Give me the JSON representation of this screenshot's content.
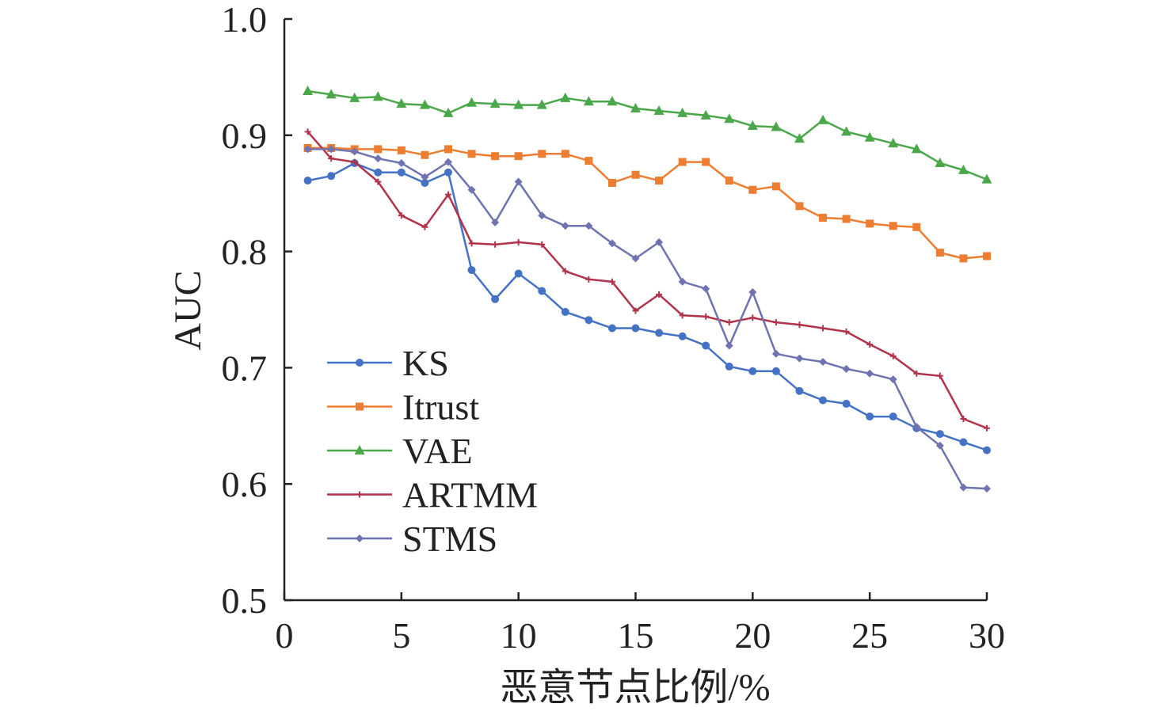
{
  "chart_data": {
    "type": "line",
    "title": "",
    "xlabel": "恶意节点比例/%",
    "ylabel": "AUC",
    "xlim": [
      0,
      30
    ],
    "ylim": [
      0.5,
      1.0
    ],
    "x_ticks": [
      0,
      5,
      10,
      15,
      20,
      25,
      30
    ],
    "y_ticks": [
      0.5,
      0.6,
      0.7,
      0.8,
      0.9,
      1.0
    ],
    "x_tick_labels": [
      "0",
      "5",
      "10",
      "15",
      "20",
      "25",
      "30"
    ],
    "y_tick_labels": [
      "0.5",
      "0.6",
      "0.7",
      "0.8",
      "0.9",
      "1.0"
    ],
    "grid": false,
    "legend_position": "bottom-left",
    "x": [
      1,
      2,
      3,
      4,
      5,
      6,
      7,
      8,
      9,
      10,
      11,
      12,
      13,
      14,
      15,
      16,
      17,
      18,
      19,
      20,
      21,
      22,
      23,
      24,
      25,
      26,
      27,
      28,
      29,
      30
    ],
    "series": [
      {
        "name": "KS",
        "color": "#4472c4",
        "marker": "circle",
        "values": [
          0.861,
          0.865,
          0.876,
          0.868,
          0.868,
          0.859,
          0.868,
          0.784,
          0.759,
          0.781,
          0.766,
          0.748,
          0.741,
          0.734,
          0.734,
          0.73,
          0.727,
          0.719,
          0.701,
          0.697,
          0.697,
          0.68,
          0.672,
          0.669,
          0.658,
          0.658,
          0.648,
          0.643,
          0.636,
          0.629
        ]
      },
      {
        "name": "Itrust",
        "color": "#ed7d31",
        "marker": "square",
        "values": [
          0.889,
          0.889,
          0.888,
          0.888,
          0.887,
          0.883,
          0.888,
          0.884,
          0.882,
          0.882,
          0.884,
          0.884,
          0.878,
          0.859,
          0.866,
          0.861,
          0.877,
          0.877,
          0.861,
          0.853,
          0.856,
          0.839,
          0.829,
          0.828,
          0.824,
          0.822,
          0.821,
          0.799,
          0.794,
          0.796
        ]
      },
      {
        "name": "VAE",
        "color": "#4aa84a",
        "marker": "triangle",
        "values": [
          0.938,
          0.935,
          0.932,
          0.933,
          0.927,
          0.926,
          0.919,
          0.928,
          0.927,
          0.926,
          0.926,
          0.932,
          0.929,
          0.929,
          0.923,
          0.921,
          0.919,
          0.917,
          0.914,
          0.908,
          0.907,
          0.897,
          0.913,
          0.903,
          0.898,
          0.893,
          0.888,
          0.876,
          0.87,
          0.862
        ]
      },
      {
        "name": "ARTMM",
        "color": "#b2334c",
        "marker": "plus",
        "values": [
          0.903,
          0.88,
          0.877,
          0.86,
          0.831,
          0.821,
          0.849,
          0.807,
          0.806,
          0.808,
          0.806,
          0.783,
          0.776,
          0.774,
          0.749,
          0.763,
          0.745,
          0.744,
          0.739,
          0.743,
          0.739,
          0.737,
          0.734,
          0.731,
          0.72,
          0.71,
          0.695,
          0.693,
          0.656,
          0.648
        ]
      },
      {
        "name": "STMS",
        "color": "#6f73b0",
        "marker": "diamond",
        "values": [
          0.888,
          0.888,
          0.886,
          0.88,
          0.876,
          0.864,
          0.877,
          0.853,
          0.825,
          0.86,
          0.831,
          0.822,
          0.822,
          0.807,
          0.794,
          0.808,
          0.774,
          0.768,
          0.719,
          0.765,
          0.712,
          0.708,
          0.705,
          0.699,
          0.695,
          0.69,
          0.649,
          0.633,
          0.597,
          0.596
        ]
      }
    ]
  }
}
